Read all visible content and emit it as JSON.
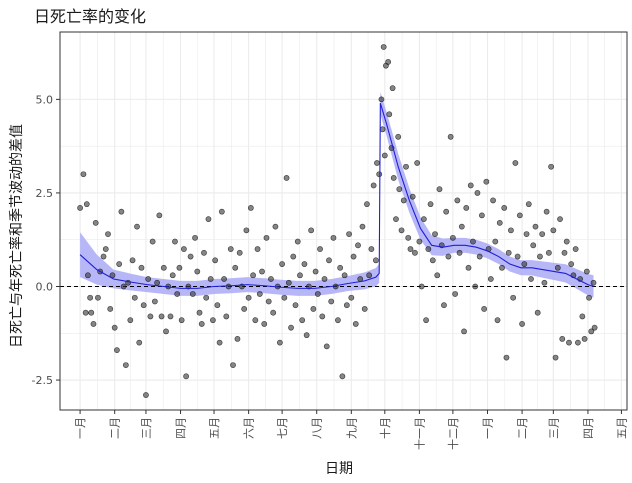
{
  "chart_data": {
    "type": "scatter",
    "title": "日死亡率的变化",
    "xlabel": "日期",
    "ylabel": "日死亡与年死亡率和季节波动的差值",
    "ylim": [
      -3.3,
      6.8
    ],
    "yticks": [
      -2.5,
      0.0,
      2.5,
      5.0
    ],
    "ytick_labels": [
      "-2.5",
      "0.0",
      "2.5",
      "5.0"
    ],
    "x_unit": "day_index_from_jan_1",
    "xlim": [
      -18,
      490
    ],
    "xticks": [
      0,
      31,
      59,
      90,
      120,
      151,
      181,
      212,
      243,
      273,
      304,
      334,
      365,
      396,
      424,
      455,
      485
    ],
    "xtick_labels": [
      "一月",
      "二月",
      "三月",
      "四月",
      "五月",
      "六月",
      "七月",
      "八月",
      "九月",
      "十月",
      "十一月",
      "十二月",
      "一月",
      "二月",
      "三月",
      "四月",
      "五月"
    ],
    "grid": true,
    "reference_line": {
      "y": 0,
      "style": "dashed"
    },
    "colors": {
      "points": "#333333",
      "trend_line": "#1f1fd6",
      "confidence_band": "#aaaaf7",
      "grid": "#ebebeb"
    },
    "trend": [
      [
        0,
        0.85
      ],
      [
        15,
        0.45
      ],
      [
        30,
        0.2
      ],
      [
        45,
        0.12
      ],
      [
        60,
        0.05
      ],
      [
        75,
        0.0
      ],
      [
        90,
        -0.05
      ],
      [
        105,
        -0.05
      ],
      [
        120,
        0.0
      ],
      [
        135,
        0.02
      ],
      [
        150,
        0.05
      ],
      [
        165,
        0.02
      ],
      [
        180,
        -0.02
      ],
      [
        195,
        -0.05
      ],
      [
        210,
        -0.05
      ],
      [
        225,
        0.0
      ],
      [
        240,
        0.08
      ],
      [
        255,
        0.15
      ],
      [
        265,
        0.25
      ],
      [
        268,
        0.35
      ],
      [
        269,
        4.9
      ],
      [
        275,
        4.3
      ],
      [
        285,
        3.2
      ],
      [
        295,
        2.3
      ],
      [
        305,
        1.55
      ],
      [
        315,
        1.1
      ],
      [
        325,
        1.05
      ],
      [
        335,
        1.1
      ],
      [
        345,
        1.1
      ],
      [
        355,
        1.05
      ],
      [
        365,
        0.95
      ],
      [
        375,
        0.8
      ],
      [
        385,
        0.6
      ],
      [
        395,
        0.5
      ],
      [
        405,
        0.5
      ],
      [
        415,
        0.45
      ],
      [
        425,
        0.4
      ],
      [
        435,
        0.35
      ],
      [
        445,
        0.2
      ],
      [
        455,
        0.05
      ],
      [
        460,
        0.0
      ]
    ],
    "band_halfwidth": [
      [
        0,
        0.6
      ],
      [
        15,
        0.4
      ],
      [
        30,
        0.25
      ],
      [
        60,
        0.2
      ],
      [
        120,
        0.2
      ],
      [
        180,
        0.2
      ],
      [
        240,
        0.2
      ],
      [
        268,
        0.25
      ],
      [
        269,
        0.3
      ],
      [
        285,
        0.35
      ],
      [
        305,
        0.3
      ],
      [
        335,
        0.2
      ],
      [
        365,
        0.2
      ],
      [
        400,
        0.2
      ],
      [
        440,
        0.25
      ],
      [
        460,
        0.3
      ]
    ],
    "points": [
      [
        0,
        2.1
      ],
      [
        3,
        3.0
      ],
      [
        5,
        -0.7
      ],
      [
        6,
        2.2
      ],
      [
        7,
        0.3
      ],
      [
        9,
        -0.3
      ],
      [
        10,
        -0.7
      ],
      [
        12,
        -1.0
      ],
      [
        14,
        1.7
      ],
      [
        16,
        -0.3
      ],
      [
        18,
        0.4
      ],
      [
        21,
        0.8
      ],
      [
        23,
        1.0
      ],
      [
        25,
        1.4
      ],
      [
        27,
        -0.6
      ],
      [
        29,
        0.3
      ],
      [
        31,
        -1.1
      ],
      [
        33,
        -1.7
      ],
      [
        35,
        0.6
      ],
      [
        37,
        2.0
      ],
      [
        39,
        0.0
      ],
      [
        41,
        -2.1
      ],
      [
        43,
        0.1
      ],
      [
        45,
        -0.9
      ],
      [
        47,
        0.7
      ],
      [
        49,
        -0.3
      ],
      [
        51,
        1.6
      ],
      [
        53,
        -1.5
      ],
      [
        55,
        0.5
      ],
      [
        57,
        -0.5
      ],
      [
        59,
        -2.9
      ],
      [
        61,
        0.2
      ],
      [
        63,
        -0.8
      ],
      [
        65,
        1.2
      ],
      [
        67,
        -0.4
      ],
      [
        69,
        0.1
      ],
      [
        71,
        1.9
      ],
      [
        73,
        -0.8
      ],
      [
        75,
        0.5
      ],
      [
        77,
        -1.2
      ],
      [
        79,
        0.0
      ],
      [
        81,
        -0.8
      ],
      [
        83,
        0.3
      ],
      [
        85,
        1.2
      ],
      [
        87,
        -0.2
      ],
      [
        89,
        0.5
      ],
      [
        91,
        -0.9
      ],
      [
        93,
        1.0
      ],
      [
        95,
        -2.4
      ],
      [
        97,
        0.0
      ],
      [
        99,
        0.8
      ],
      [
        101,
        -0.2
      ],
      [
        103,
        1.3
      ],
      [
        105,
        0.4
      ],
      [
        107,
        -0.7
      ],
      [
        109,
        -1.0
      ],
      [
        111,
        0.9
      ],
      [
        113,
        -0.3
      ],
      [
        115,
        1.8
      ],
      [
        117,
        0.2
      ],
      [
        119,
        -0.9
      ],
      [
        121,
        0.7
      ],
      [
        123,
        -0.5
      ],
      [
        125,
        -1.5
      ],
      [
        127,
        2.0
      ],
      [
        129,
        0.2
      ],
      [
        131,
        -0.8
      ],
      [
        133,
        0.0
      ],
      [
        135,
        1.0
      ],
      [
        137,
        -2.1
      ],
      [
        139,
        0.5
      ],
      [
        141,
        -1.4
      ],
      [
        143,
        0.9
      ],
      [
        145,
        0.0
      ],
      [
        147,
        -0.6
      ],
      [
        149,
        1.5
      ],
      [
        151,
        -0.3
      ],
      [
        153,
        2.1
      ],
      [
        155,
        0.3
      ],
      [
        157,
        -0.9
      ],
      [
        159,
        1.0
      ],
      [
        161,
        -0.2
      ],
      [
        163,
        0.4
      ],
      [
        165,
        -1.0
      ],
      [
        167,
        1.3
      ],
      [
        169,
        -0.4
      ],
      [
        171,
        0.2
      ],
      [
        173,
        -0.7
      ],
      [
        175,
        1.6
      ],
      [
        177,
        0.0
      ],
      [
        179,
        -1.5
      ],
      [
        181,
        0.6
      ],
      [
        183,
        -0.3
      ],
      [
        185,
        2.9
      ],
      [
        187,
        0.1
      ],
      [
        189,
        -1.1
      ],
      [
        191,
        0.8
      ],
      [
        193,
        -0.5
      ],
      [
        195,
        1.2
      ],
      [
        197,
        0.3
      ],
      [
        199,
        -0.9
      ],
      [
        201,
        0.6
      ],
      [
        203,
        -1.3
      ],
      [
        205,
        0.0
      ],
      [
        207,
        1.5
      ],
      [
        209,
        -0.6
      ],
      [
        211,
        0.4
      ],
      [
        213,
        -0.2
      ],
      [
        215,
        1.0
      ],
      [
        217,
        -0.8
      ],
      [
        219,
        0.2
      ],
      [
        221,
        -1.6
      ],
      [
        223,
        0.7
      ],
      [
        225,
        -0.4
      ],
      [
        227,
        1.3
      ],
      [
        229,
        0.0
      ],
      [
        231,
        -0.9
      ],
      [
        233,
        0.5
      ],
      [
        235,
        -2.4
      ],
      [
        237,
        0.3
      ],
      [
        239,
        -0.5
      ],
      [
        241,
        1.4
      ],
      [
        243,
        -0.3
      ],
      [
        245,
        0.8
      ],
      [
        247,
        -1.0
      ],
      [
        249,
        1.1
      ],
      [
        251,
        0.2
      ],
      [
        253,
        1.6
      ],
      [
        255,
        -0.6
      ],
      [
        257,
        2.2
      ],
      [
        259,
        0.3
      ],
      [
        261,
        1.0
      ],
      [
        263,
        2.7
      ],
      [
        265,
        0.7
      ],
      [
        266,
        3.3
      ],
      [
        268,
        3.0
      ],
      [
        270,
        5.0
      ],
      [
        271,
        4.2
      ],
      [
        272,
        6.4
      ],
      [
        273,
        3.5
      ],
      [
        274,
        5.9
      ],
      [
        276,
        6.0
      ],
      [
        277,
        4.6
      ],
      [
        279,
        3.7
      ],
      [
        280,
        5.3
      ],
      [
        281,
        2.9
      ],
      [
        283,
        1.8
      ],
      [
        285,
        4.0
      ],
      [
        286,
        2.6
      ],
      [
        288,
        1.5
      ],
      [
        290,
        2.3
      ],
      [
        292,
        3.2
      ],
      [
        294,
        1.3
      ],
      [
        296,
        1.0
      ],
      [
        298,
        2.4
      ],
      [
        300,
        0.9
      ],
      [
        302,
        3.3
      ],
      [
        304,
        1.2
      ],
      [
        306,
        0.0
      ],
      [
        308,
        1.8
      ],
      [
        310,
        -0.9
      ],
      [
        312,
        1.0
      ],
      [
        314,
        2.2
      ],
      [
        316,
        0.7
      ],
      [
        318,
        1.4
      ],
      [
        320,
        0.3
      ],
      [
        322,
        2.6
      ],
      [
        324,
        1.1
      ],
      [
        326,
        -0.5
      ],
      [
        328,
        2.0
      ],
      [
        330,
        0.8
      ],
      [
        332,
        4.0
      ],
      [
        334,
        1.3
      ],
      [
        336,
        -0.2
      ],
      [
        338,
        2.3
      ],
      [
        340,
        0.9
      ],
      [
        342,
        1.6
      ],
      [
        344,
        -1.2
      ],
      [
        346,
        2.1
      ],
      [
        348,
        0.5
      ],
      [
        350,
        2.7
      ],
      [
        352,
        1.2
      ],
      [
        354,
        0.0
      ],
      [
        356,
        2.5
      ],
      [
        358,
        0.8
      ],
      [
        360,
        1.9
      ],
      [
        362,
        -0.6
      ],
      [
        364,
        2.8
      ],
      [
        366,
        1.0
      ],
      [
        368,
        0.2
      ],
      [
        370,
        2.3
      ],
      [
        372,
        1.2
      ],
      [
        374,
        -0.9
      ],
      [
        376,
        1.7
      ],
      [
        378,
        0.5
      ],
      [
        380,
        2.1
      ],
      [
        382,
        -1.9
      ],
      [
        384,
        0.9
      ],
      [
        386,
        1.5
      ],
      [
        388,
        -0.3
      ],
      [
        390,
        3.3
      ],
      [
        392,
        0.8
      ],
      [
        394,
        1.9
      ],
      [
        396,
        -1.0
      ],
      [
        398,
        0.6
      ],
      [
        400,
        1.4
      ],
      [
        402,
        2.2
      ],
      [
        404,
        0.2
      ],
      [
        406,
        1.1
      ],
      [
        408,
        1.6
      ],
      [
        410,
        -0.7
      ],
      [
        412,
        0.8
      ],
      [
        414,
        1.4
      ],
      [
        416,
        0.1
      ],
      [
        418,
        2.0
      ],
      [
        420,
        0.9
      ],
      [
        422,
        3.2
      ],
      [
        424,
        1.5
      ],
      [
        426,
        -1.9
      ],
      [
        428,
        0.5
      ],
      [
        430,
        1.8
      ],
      [
        432,
        -1.4
      ],
      [
        434,
        0.9
      ],
      [
        436,
        1.2
      ],
      [
        438,
        -1.5
      ],
      [
        440,
        0.6
      ],
      [
        442,
        0.3
      ],
      [
        444,
        1.0
      ],
      [
        446,
        -1.5
      ],
      [
        448,
        0.2
      ],
      [
        450,
        -0.8
      ],
      [
        452,
        -1.4
      ],
      [
        454,
        0.4
      ],
      [
        456,
        -0.3
      ],
      [
        458,
        -1.2
      ],
      [
        460,
        0.1
      ],
      [
        461,
        -1.1
      ]
    ]
  }
}
